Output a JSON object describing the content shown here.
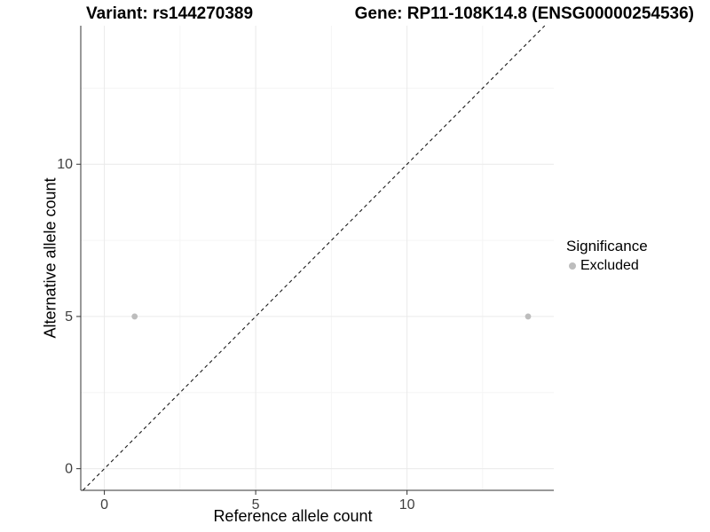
{
  "chart_data": {
    "type": "scatter",
    "title_left": "Variant: rs144270389",
    "title_right": "Gene: RP11-108K14.8 (ENSG00000254536)",
    "xlabel": "Reference allele count",
    "ylabel": "Alternative allele count",
    "xlim": [
      -0.78,
      14.85
    ],
    "ylim": [
      -0.71,
      14.55
    ],
    "xticks": [
      0,
      5,
      10
    ],
    "yticks": [
      0,
      5,
      10
    ],
    "xticks_minor": [
      2.5,
      7.5,
      12.5
    ],
    "yticks_minor": [
      2.5,
      7.5,
      12.5
    ],
    "grid": "major+minor",
    "points": [
      {
        "x": 1,
        "y": 5,
        "series": "Excluded"
      },
      {
        "x": 14,
        "y": 5,
        "series": "Excluded"
      }
    ],
    "series": [
      {
        "name": "Excluded",
        "color": "#bdbdbd"
      }
    ],
    "reference_line": {
      "type": "identity",
      "slope": 1,
      "intercept": 0,
      "style": "dashed",
      "color": "#1a1a1a"
    },
    "legend": {
      "title": "Significance",
      "position": "right",
      "items": [
        {
          "label": "Excluded",
          "color": "#bdbdbd",
          "marker": "circle"
        }
      ]
    }
  },
  "colors": {
    "background": "#ffffff",
    "axis_line": "#333333",
    "tick_label": "#404040",
    "grid_major": "#eaeaea",
    "grid_minor": "#f5f5f5",
    "point": "#bdbdbd"
  }
}
